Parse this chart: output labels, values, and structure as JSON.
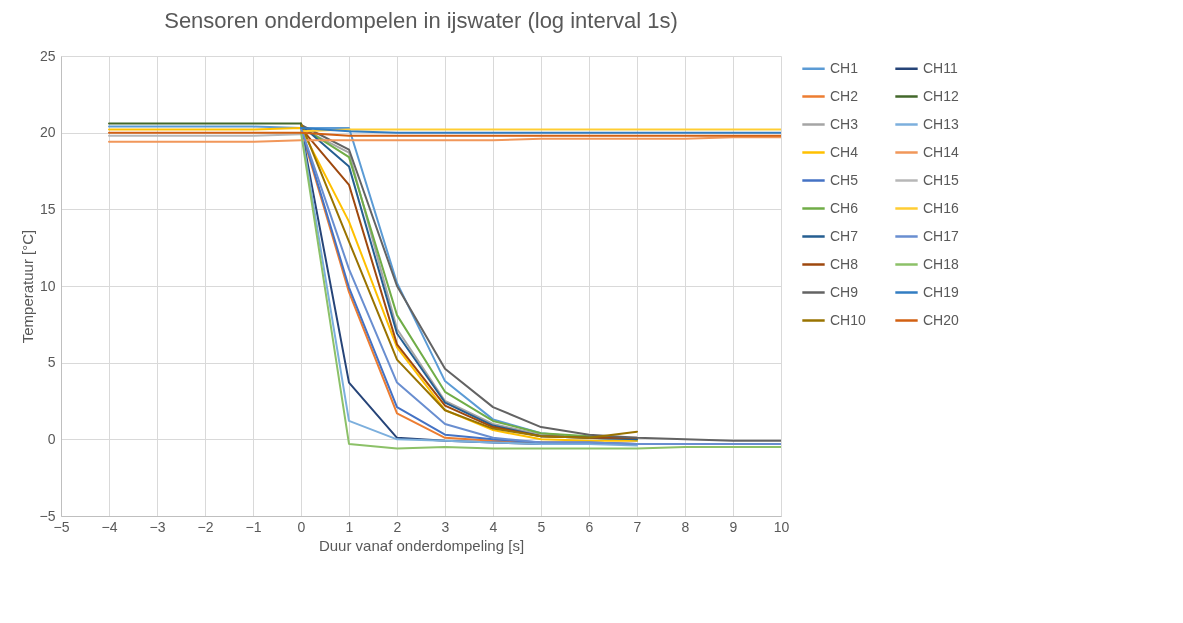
{
  "chart_data": {
    "type": "line",
    "title": "Sensoren  onderdompelen  in ijswater (log interval 1s)",
    "xlabel": "Duur vanaf onderdompeling [s]",
    "ylabel": "Temperatuur [°C]",
    "x": [
      -4,
      -3,
      -2,
      -1,
      0,
      1,
      2,
      3,
      4,
      5,
      6,
      7,
      8,
      9,
      10
    ],
    "xlim": [
      -5,
      10
    ],
    "xticks": [
      -5,
      -4,
      -3,
      -2,
      -1,
      0,
      1,
      2,
      3,
      4,
      5,
      6,
      7,
      8,
      9,
      10
    ],
    "ylim": [
      -5,
      25
    ],
    "yticks": [
      -5,
      0,
      5,
      10,
      15,
      20,
      25
    ],
    "grid": true,
    "legend": "right",
    "series": [
      {
        "name": "CH1",
        "color": "#5b9bd5",
        "values": [
          20.4,
          20.4,
          20.4,
          20.4,
          20.3,
          20.3,
          10.2,
          3.8,
          1.3,
          0.4,
          0.1,
          -0.1,
          null,
          null,
          null
        ]
      },
      {
        "name": "CH2",
        "color": "#ed7d31",
        "values": [
          null,
          null,
          null,
          null,
          20.2,
          9.6,
          1.7,
          0.1,
          -0.1,
          -0.2,
          -0.2,
          -0.3,
          null,
          null,
          null
        ]
      },
      {
        "name": "CH3",
        "color": "#a5a5a5",
        "values": [
          null,
          null,
          null,
          null,
          20.3,
          18.7,
          7.2,
          2.5,
          1.0,
          0.3,
          0.1,
          0.0,
          null,
          null,
          null
        ]
      },
      {
        "name": "CH4",
        "color": "#ffc000",
        "values": [
          20.2,
          20.2,
          20.2,
          20.2,
          20.3,
          14.2,
          6.0,
          1.9,
          0.6,
          0.0,
          -0.1,
          -0.1,
          null,
          null,
          null
        ]
      },
      {
        "name": "CH5",
        "color": "#4472c4",
        "values": [
          null,
          null,
          null,
          null,
          20.3,
          9.9,
          2.1,
          0.3,
          0.0,
          -0.2,
          -0.2,
          -0.3,
          null,
          null,
          null
        ]
      },
      {
        "name": "CH6",
        "color": "#70ad47",
        "values": [
          null,
          null,
          null,
          null,
          20.4,
          18.4,
          8.1,
          3.1,
          1.2,
          0.4,
          0.2,
          0.0,
          null,
          null,
          null
        ]
      },
      {
        "name": "CH7",
        "color": "#255e91",
        "values": [
          null,
          null,
          null,
          null,
          20.5,
          17.8,
          6.9,
          2.4,
          0.9,
          0.2,
          0.1,
          0.0,
          null,
          null,
          null
        ]
      },
      {
        "name": "CH8",
        "color": "#9e480e",
        "values": [
          null,
          null,
          null,
          null,
          20.3,
          16.6,
          6.2,
          2.2,
          0.8,
          0.2,
          0.1,
          0.1,
          null,
          null,
          null
        ]
      },
      {
        "name": "CH9",
        "color": "#636363",
        "values": [
          null,
          null,
          null,
          null,
          20.5,
          18.9,
          10.0,
          4.6,
          2.1,
          0.8,
          0.3,
          0.1,
          0.0,
          -0.1,
          -0.1
        ]
      },
      {
        "name": "CH10",
        "color": "#997300",
        "values": [
          null,
          null,
          null,
          null,
          20.6,
          12.9,
          5.2,
          1.9,
          0.7,
          0.2,
          0.1,
          0.5,
          null,
          null,
          null
        ]
      },
      {
        "name": "CH11",
        "color": "#264478",
        "values": [
          null,
          null,
          null,
          null,
          20.3,
          3.7,
          0.1,
          -0.1,
          -0.2,
          -0.3,
          -0.3,
          -0.3,
          null,
          null,
          null
        ]
      },
      {
        "name": "CH12",
        "color": "#43682b",
        "values": [
          20.6,
          20.6,
          20.6,
          20.6,
          20.6,
          null,
          null,
          null,
          null,
          null,
          null,
          null,
          null,
          null,
          null
        ]
      },
      {
        "name": "CH13",
        "color": "#7cafdd",
        "values": [
          null,
          null,
          null,
          null,
          20.2,
          1.2,
          0.0,
          -0.1,
          -0.2,
          -0.3,
          -0.3,
          -0.4,
          null,
          null,
          null
        ]
      },
      {
        "name": "CH14",
        "color": "#f1975a",
        "values": [
          19.4,
          19.4,
          19.4,
          19.4,
          19.5,
          19.5,
          19.5,
          19.5,
          19.5,
          19.6,
          19.6,
          19.6,
          19.6,
          19.7,
          19.7
        ]
      },
      {
        "name": "CH15",
        "color": "#b7b7b7",
        "values": [
          19.8,
          19.8,
          19.8,
          19.8,
          19.9,
          null,
          null,
          null,
          null,
          null,
          null,
          null,
          null,
          null,
          null
        ]
      },
      {
        "name": "CH16",
        "color": "#ffcd33",
        "values": [
          null,
          null,
          null,
          null,
          20.1,
          20.2,
          20.2,
          20.2,
          20.2,
          20.2,
          20.2,
          20.2,
          20.2,
          20.2,
          20.2
        ]
      },
      {
        "name": "CH17",
        "color": "#698ed0",
        "values": [
          null,
          null,
          null,
          null,
          20.3,
          11.1,
          3.7,
          1.0,
          0.1,
          -0.2,
          -0.2,
          -0.3,
          -0.3,
          -0.3,
          -0.3
        ]
      },
      {
        "name": "CH18",
        "color": "#8cc168",
        "values": [
          null,
          null,
          null,
          null,
          20.0,
          -0.3,
          -0.6,
          -0.5,
          -0.6,
          -0.6,
          -0.6,
          -0.6,
          -0.5,
          -0.5,
          -0.5
        ]
      },
      {
        "name": "CH19",
        "color": "#327dc2",
        "values": [
          null,
          null,
          null,
          null,
          20.3,
          20.1,
          20.0,
          20.0,
          20.0,
          20.0,
          20.0,
          20.0,
          20.0,
          20.0,
          20.0
        ]
      },
      {
        "name": "CH20",
        "color": "#d26012",
        "values": [
          20.0,
          20.0,
          20.0,
          20.0,
          20.0,
          19.8,
          19.8,
          19.8,
          19.8,
          19.8,
          19.8,
          19.8,
          19.8,
          19.8,
          19.8
        ]
      }
    ]
  }
}
